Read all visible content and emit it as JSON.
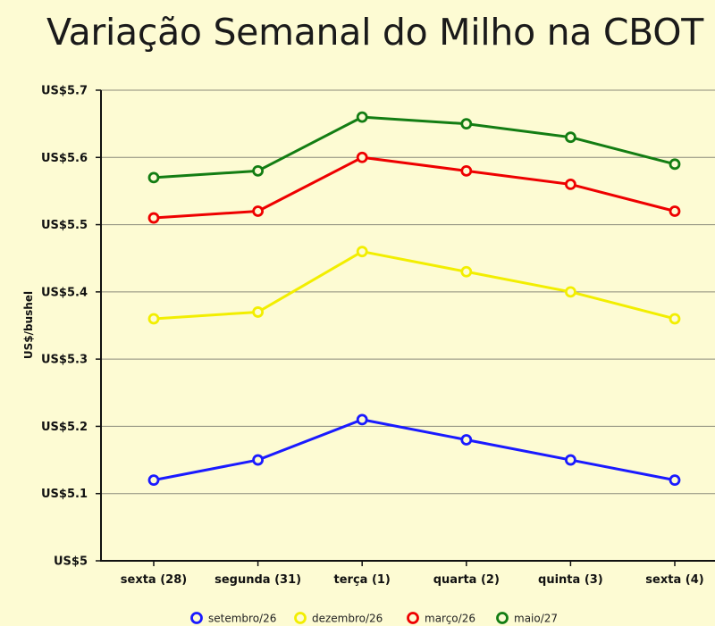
{
  "chart_data": {
    "type": "line",
    "title": "Variação Semanal do Milho na CBOT",
    "xlabel": "",
    "ylabel": "US$/bushel",
    "categories": [
      "sexta (28)",
      "segunda (31)",
      "terça (1)",
      "quarta (2)",
      "quinta (3)",
      "sexta (4)"
    ],
    "ylim": [
      5.0,
      5.7
    ],
    "yticks": [
      5.0,
      5.1,
      5.2,
      5.3,
      5.4,
      5.5,
      5.6,
      5.7
    ],
    "ytick_labels": [
      "US$5",
      "US$5.1",
      "US$5.2",
      "US$5.3",
      "US$5.4",
      "US$5.5",
      "US$5.6",
      "US$5.7"
    ],
    "grid": "horizontal",
    "legend_position": "bottom",
    "series": [
      {
        "name": "setembro/26",
        "color": "#1a1aff",
        "values": [
          5.12,
          5.15,
          5.21,
          5.18,
          5.15,
          5.12
        ]
      },
      {
        "name": "dezembro/26",
        "color": "#f2ee00",
        "values": [
          5.36,
          5.37,
          5.46,
          5.43,
          5.4,
          5.36
        ]
      },
      {
        "name": "março/26",
        "color": "#ee0000",
        "values": [
          5.51,
          5.52,
          5.6,
          5.58,
          5.56,
          5.52
        ]
      },
      {
        "name": "maio/27",
        "color": "#137d13",
        "values": [
          5.57,
          5.58,
          5.66,
          5.65,
          5.63,
          5.59
        ]
      }
    ]
  }
}
